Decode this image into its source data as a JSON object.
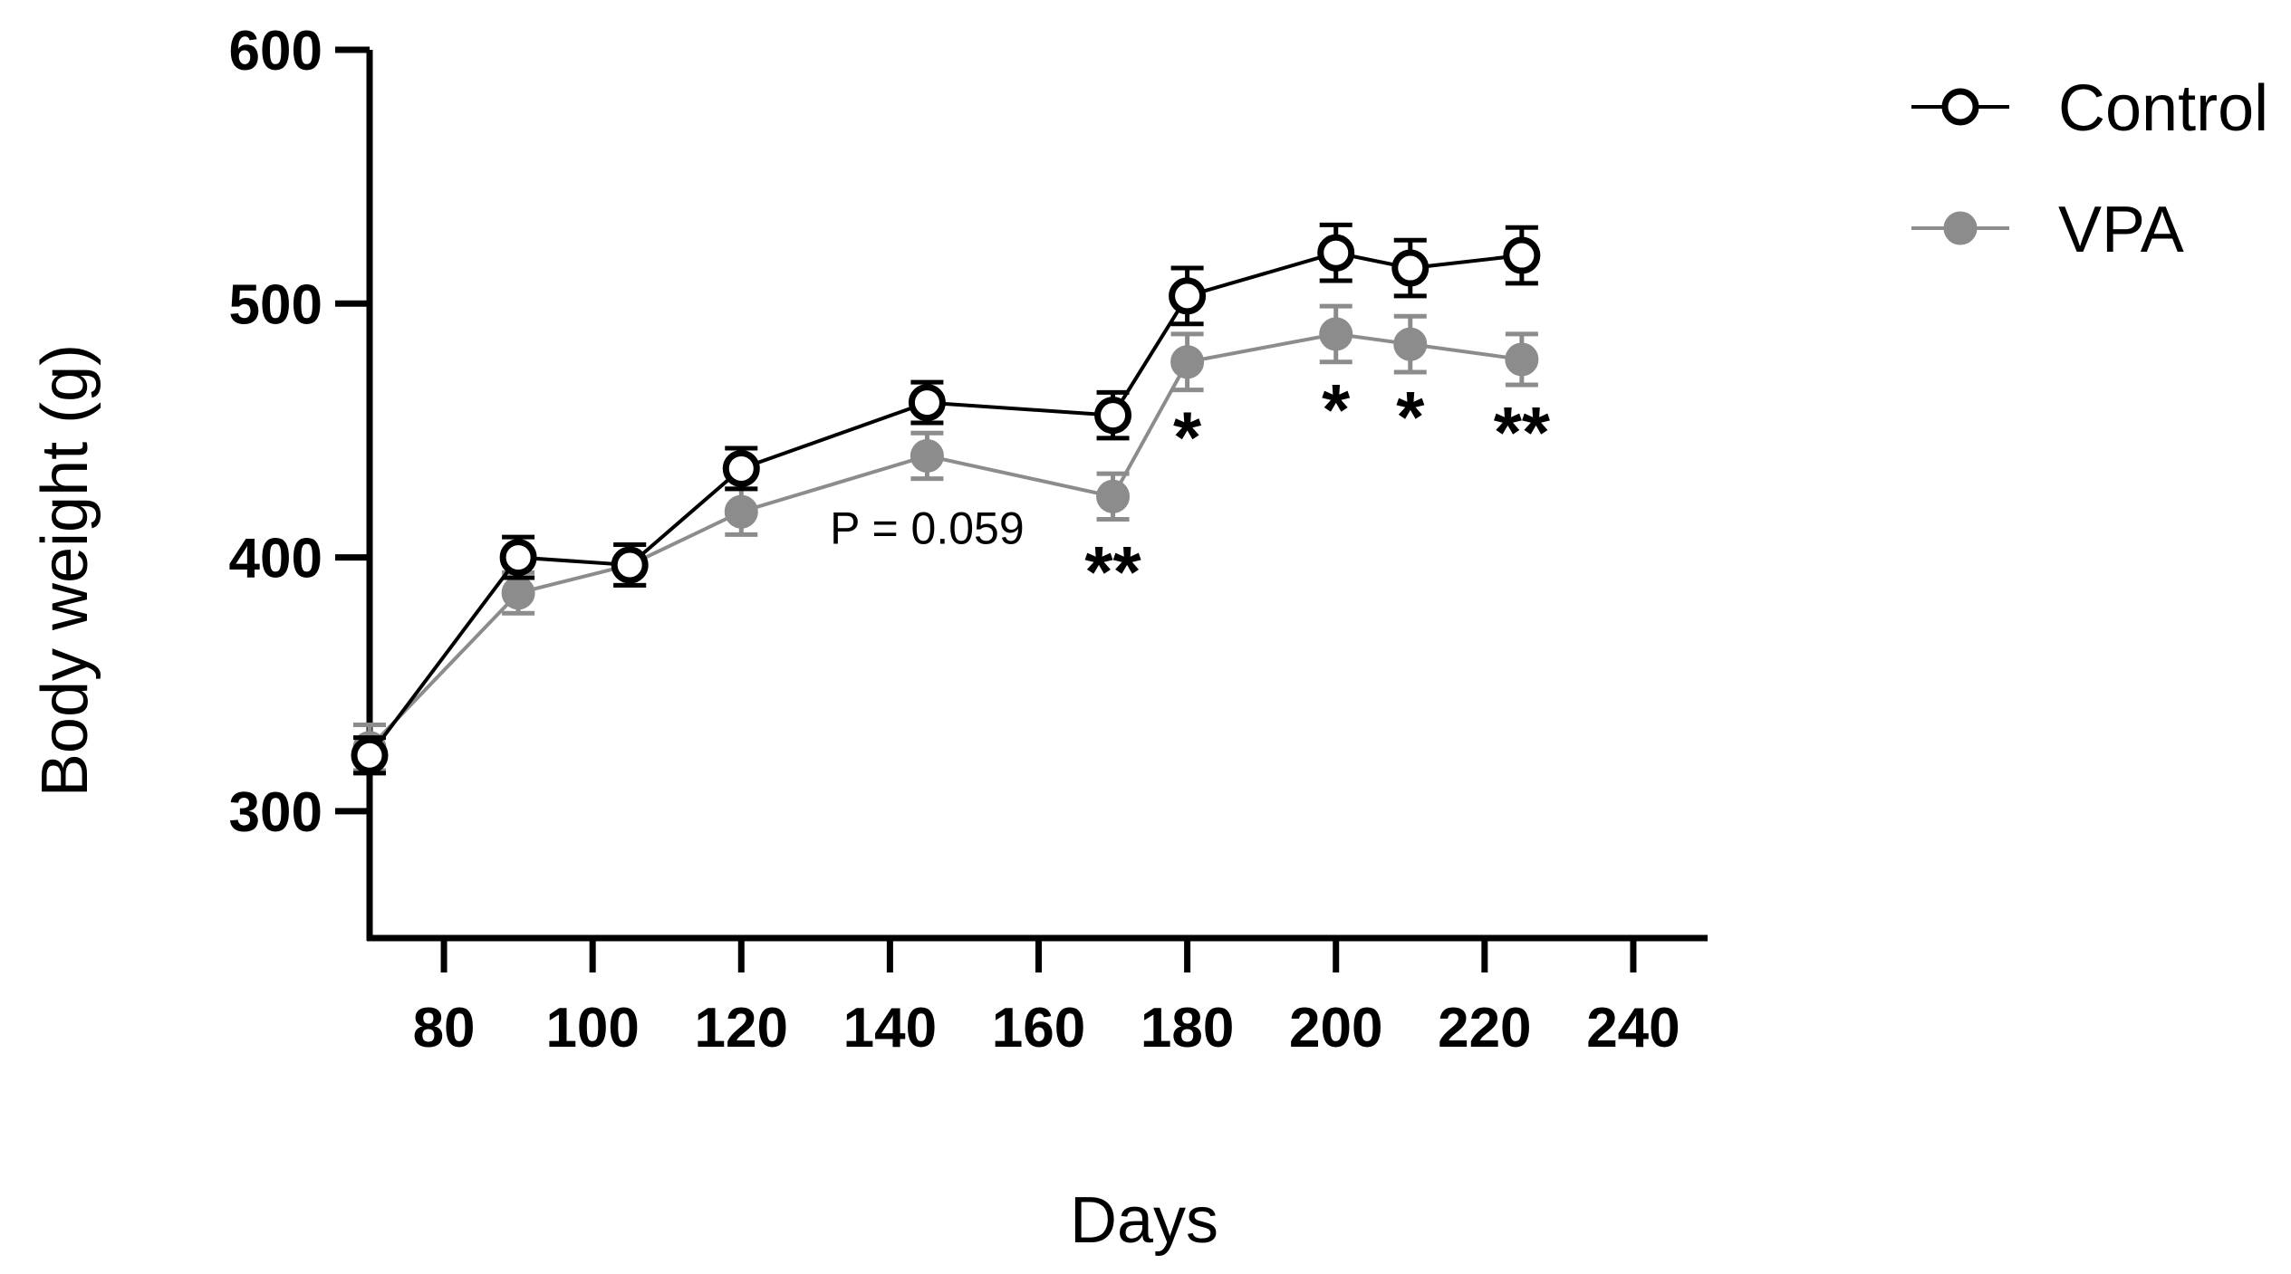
{
  "chart_data": {
    "type": "line",
    "title": "",
    "xlabel": "Days",
    "ylabel": "Body  weight (g)",
    "xlim": [
      70,
      250
    ],
    "ylim": [
      250,
      600
    ],
    "x_ticks": [
      80,
      100,
      120,
      140,
      160,
      180,
      200,
      220,
      240
    ],
    "y_ticks": [
      300,
      400,
      500,
      600
    ],
    "x": [
      70,
      90,
      105,
      120,
      145,
      170,
      180,
      200,
      210,
      225
    ],
    "series": [
      {
        "name": "Control",
        "marker": "open-circle",
        "color": "#000000",
        "values": [
          322,
          400,
          397,
          435,
          461,
          456,
          503,
          520,
          514,
          519
        ],
        "errors": [
          7,
          8,
          8,
          8,
          8,
          9,
          11,
          11,
          11,
          11
        ]
      },
      {
        "name": "VPA",
        "marker": "filled-circle",
        "color": "#8c8c8c",
        "values": [
          325,
          386,
          397,
          418,
          440,
          424,
          477,
          488,
          484,
          478
        ],
        "errors": [
          9,
          8,
          8,
          9,
          9,
          9,
          11,
          11,
          11,
          10
        ]
      }
    ],
    "annotations": [
      {
        "text": "P = 0.059",
        "x": 145,
        "y": 411,
        "kind": "note"
      },
      {
        "text": "**",
        "x": 170,
        "y": 403,
        "kind": "sig"
      },
      {
        "text": "*",
        "x": 180,
        "y": 456,
        "kind": "sig"
      },
      {
        "text": "*",
        "x": 200,
        "y": 467,
        "kind": "sig"
      },
      {
        "text": "*",
        "x": 210,
        "y": 464,
        "kind": "sig"
      },
      {
        "text": "**",
        "x": 225,
        "y": 458,
        "kind": "sig"
      }
    ],
    "legend": {
      "position": "top-right"
    }
  }
}
